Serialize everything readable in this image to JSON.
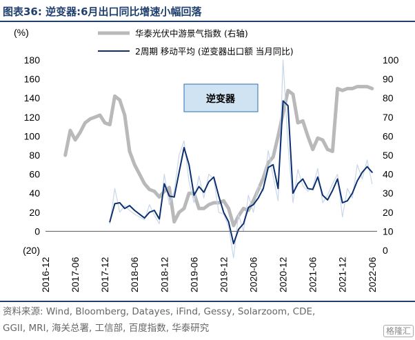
{
  "title": "图表36:  逆变器:6月出口同比增速小幅回落",
  "source_lines": [
    "资料来源: Wind, Bloomberg, Datayes, iFind, Gessy, Solarzoom, CDE,",
    "GGII, MRI, 海关总署, 工信部, 百度指数, 华泰研究"
  ],
  "watermark": "格隆汇",
  "colors": {
    "title": "#1f3f6e",
    "series_gray": "#b9b9b9",
    "series_navy": "#0b2f6e",
    "series_thin": "#c8d6ea",
    "annot_fill": "#cfe3f3",
    "annot_border": "#2a6fb0"
  },
  "chart_data": {
    "type": "line",
    "left_axis": {
      "unit_label": "(%)",
      "min": -20,
      "max": 180,
      "ticks": [
        -20,
        0,
        20,
        40,
        60,
        80,
        100,
        120,
        140,
        160,
        180
      ],
      "tick_labels": [
        "(20)",
        "0",
        "20",
        "40",
        "60",
        "80",
        "100",
        "120",
        "140",
        "160",
        "180"
      ]
    },
    "right_axis": {
      "min": 0,
      "max": 100,
      "ticks": [
        0,
        10,
        20,
        30,
        40,
        50,
        60,
        70,
        80,
        90,
        100
      ]
    },
    "x_axis": {
      "start": "2016-12",
      "end": "2022-07",
      "tick_labels": [
        "2016-12",
        "2017-06",
        "2017-12",
        "2018-06",
        "2018-12",
        "2019-06",
        "2019-12",
        "2020-06",
        "2020-12",
        "2021-06",
        "2021-12",
        "2022-06"
      ]
    },
    "annotation": "逆变器",
    "series": [
      {
        "name": "华泰光伏中游景气指数 (右轴)",
        "axis": "right",
        "style": "thick-gray",
        "points": [
          [
            "2017-04",
            50
          ],
          [
            "2017-05",
            63
          ],
          [
            "2017-06",
            58
          ],
          [
            "2017-07",
            62
          ],
          [
            "2017-08",
            67
          ],
          [
            "2017-09",
            69
          ],
          [
            "2017-10",
            70
          ],
          [
            "2017-11",
            71
          ],
          [
            "2017-12",
            67
          ],
          [
            "2018-01",
            66
          ],
          [
            "2018-02",
            81
          ],
          [
            "2018-03",
            79
          ],
          [
            "2018-04",
            71
          ],
          [
            "2018-05",
            52
          ],
          [
            "2018-06",
            45
          ],
          [
            "2018-07",
            40
          ],
          [
            "2018-08",
            35
          ],
          [
            "2018-09",
            32
          ],
          [
            "2018-10",
            31
          ],
          [
            "2018-11",
            28
          ],
          [
            "2018-12",
            31
          ],
          [
            "2019-01",
            33
          ],
          [
            "2019-02",
            15
          ],
          [
            "2019-03",
            20
          ],
          [
            "2019-04",
            22
          ],
          [
            "2019-05",
            30
          ],
          [
            "2019-06",
            30
          ],
          [
            "2019-07",
            22
          ],
          [
            "2019-08",
            22
          ],
          [
            "2019-09",
            24
          ],
          [
            "2019-10",
            25
          ],
          [
            "2019-11",
            25
          ],
          [
            "2019-12",
            26
          ],
          [
            "2020-01",
            22
          ],
          [
            "2020-02",
            13
          ],
          [
            "2020-03",
            18
          ],
          [
            "2020-04",
            22
          ],
          [
            "2020-05",
            21
          ],
          [
            "2020-06",
            26
          ],
          [
            "2020-07",
            32
          ],
          [
            "2020-08",
            38
          ],
          [
            "2020-09",
            46
          ],
          [
            "2020-10",
            49
          ],
          [
            "2020-11",
            60
          ],
          [
            "2020-12",
            72
          ],
          [
            "2021-01",
            84
          ],
          [
            "2021-02",
            82
          ],
          [
            "2021-03",
            67
          ],
          [
            "2021-04",
            68
          ],
          [
            "2021-05",
            60
          ],
          [
            "2021-06",
            53
          ],
          [
            "2021-07",
            59
          ],
          [
            "2021-08",
            58
          ],
          [
            "2021-09",
            53
          ],
          [
            "2021-10",
            52
          ],
          [
            "2021-11",
            85
          ],
          [
            "2021-12",
            84
          ],
          [
            "2022-01",
            85
          ],
          [
            "2022-02",
            85
          ],
          [
            "2022-03",
            86
          ],
          [
            "2022-04",
            86
          ],
          [
            "2022-05",
            86
          ],
          [
            "2022-06",
            85
          ]
        ]
      },
      {
        "name": "2周期 移动平均 (逆变器出口额 当月同比)",
        "axis": "left",
        "style": "navy",
        "points": [
          [
            "2018-01",
            10
          ],
          [
            "2018-02",
            29
          ],
          [
            "2018-03",
            30
          ],
          [
            "2018-04",
            24
          ],
          [
            "2018-05",
            27
          ],
          [
            "2018-06",
            22
          ],
          [
            "2018-07",
            18
          ],
          [
            "2018-08",
            14
          ],
          [
            "2018-09",
            20
          ],
          [
            "2018-10",
            22
          ],
          [
            "2018-11",
            13
          ],
          [
            "2018-12",
            50
          ],
          [
            "2019-01",
            37
          ],
          [
            "2019-02",
            36
          ],
          [
            "2019-03",
            62
          ],
          [
            "2019-04",
            88
          ],
          [
            "2019-05",
            70
          ],
          [
            "2019-06",
            38
          ],
          [
            "2019-07",
            47
          ],
          [
            "2019-08",
            41
          ],
          [
            "2019-09",
            52
          ],
          [
            "2019-10",
            57
          ],
          [
            "2019-11",
            37
          ],
          [
            "2019-12",
            20
          ],
          [
            "2020-01",
            10
          ],
          [
            "2020-02",
            -13
          ],
          [
            "2020-03",
            2
          ],
          [
            "2020-04",
            8
          ],
          [
            "2020-05",
            25
          ],
          [
            "2020-06",
            28
          ],
          [
            "2020-07",
            35
          ],
          [
            "2020-08",
            45
          ],
          [
            "2020-09",
            67
          ],
          [
            "2020-10",
            70
          ],
          [
            "2020-11",
            45
          ],
          [
            "2020-12",
            137
          ],
          [
            "2021-01",
            132
          ],
          [
            "2021-02",
            40
          ],
          [
            "2021-03",
            50
          ],
          [
            "2021-04",
            55
          ],
          [
            "2021-05",
            45
          ],
          [
            "2021-06",
            44
          ],
          [
            "2021-07",
            57
          ],
          [
            "2021-08",
            38
          ],
          [
            "2021-09",
            33
          ],
          [
            "2021-10",
            43
          ],
          [
            "2021-11",
            55
          ],
          [
            "2021-12",
            30
          ],
          [
            "2022-01",
            32
          ],
          [
            "2022-02",
            40
          ],
          [
            "2022-03",
            53
          ],
          [
            "2022-04",
            62
          ],
          [
            "2022-05",
            68
          ],
          [
            "2022-06",
            62
          ]
        ]
      },
      {
        "name": "",
        "axis": "left",
        "style": "thin-light",
        "points": [
          [
            "2018-01",
            8
          ],
          [
            "2018-02",
            45
          ],
          [
            "2018-03",
            20
          ],
          [
            "2018-04",
            27
          ],
          [
            "2018-05",
            22
          ],
          [
            "2018-06",
            18
          ],
          [
            "2018-07",
            15
          ],
          [
            "2018-08",
            12
          ],
          [
            "2018-09",
            28
          ],
          [
            "2018-10",
            17
          ],
          [
            "2018-11",
            8
          ],
          [
            "2018-12",
            60
          ],
          [
            "2019-01",
            28
          ],
          [
            "2019-02",
            42
          ],
          [
            "2019-03",
            80
          ],
          [
            "2019-04",
            95
          ],
          [
            "2019-05",
            52
          ],
          [
            "2019-06",
            30
          ],
          [
            "2019-07",
            58
          ],
          [
            "2019-08",
            35
          ],
          [
            "2019-09",
            60
          ],
          [
            "2019-10",
            55
          ],
          [
            "2019-11",
            20
          ],
          [
            "2019-12",
            18
          ],
          [
            "2020-01",
            5
          ],
          [
            "2020-02",
            -28
          ],
          [
            "2020-03",
            18
          ],
          [
            "2020-04",
            0
          ],
          [
            "2020-05",
            38
          ],
          [
            "2020-06",
            20
          ],
          [
            "2020-07",
            48
          ],
          [
            "2020-08",
            42
          ],
          [
            "2020-09",
            85
          ],
          [
            "2020-10",
            58
          ],
          [
            "2020-11",
            32
          ],
          [
            "2020-12",
            180
          ],
          [
            "2021-01",
            90
          ],
          [
            "2021-02",
            30
          ],
          [
            "2021-03",
            65
          ],
          [
            "2021-04",
            48
          ],
          [
            "2021-05",
            42
          ],
          [
            "2021-06",
            46
          ],
          [
            "2021-07",
            66
          ],
          [
            "2021-08",
            30
          ],
          [
            "2021-09",
            38
          ],
          [
            "2021-10",
            50
          ],
          [
            "2021-11",
            60
          ],
          [
            "2021-12",
            15
          ],
          [
            "2022-01",
            45
          ],
          [
            "2022-02",
            35
          ],
          [
            "2022-03",
            70
          ],
          [
            "2022-04",
            55
          ],
          [
            "2022-05",
            75
          ],
          [
            "2022-06",
            50
          ]
        ]
      }
    ]
  }
}
